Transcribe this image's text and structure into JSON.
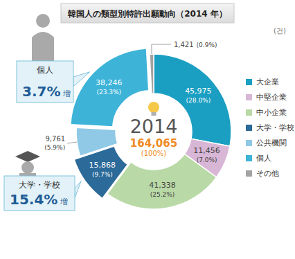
{
  "chart_data": {
    "type": "pie",
    "title": "韓国人の類型別特許出願動向（2014 年）",
    "unit_label": "(건)",
    "center_label": "2014",
    "total": 164065,
    "total_label": "164,065",
    "total_percent": 100,
    "total_percent_label": "(100%)",
    "categories": [
      "大企業",
      "中堅企業",
      "中小企業",
      "大学・学校",
      "公共機関",
      "個人",
      "その他"
    ],
    "values": [
      45975,
      11456,
      41338,
      15868,
      9761,
      38246,
      1421
    ],
    "value_labels": [
      "45,975",
      "11,456",
      "41,338",
      "15,868",
      "9,761",
      "38,246",
      "1,421"
    ],
    "percents": [
      28.0,
      7.0,
      25.2,
      9.7,
      5.9,
      23.3,
      0.9
    ],
    "percent_labels": [
      "(28.0%)",
      "(7.0%)",
      "(25.2%)",
      "(9.7%)",
      "(5.9%)",
      "(23.3%)",
      "(0.9%)"
    ],
    "colors": [
      "#1a9fc2",
      "#d8b6d6",
      "#b9d9a6",
      "#2b6a99",
      "#8fc9e6",
      "#3db3d8",
      "#a3a3a3"
    ],
    "data_labels": true,
    "legend": "right",
    "annotations": [
      {
        "label": "個人",
        "value": 3.7,
        "value_label": "3.7%",
        "suffix": "増"
      },
      {
        "label": "大学・学校",
        "value": 15.4,
        "value_label": "15.4%",
        "suffix": "増"
      }
    ]
  }
}
